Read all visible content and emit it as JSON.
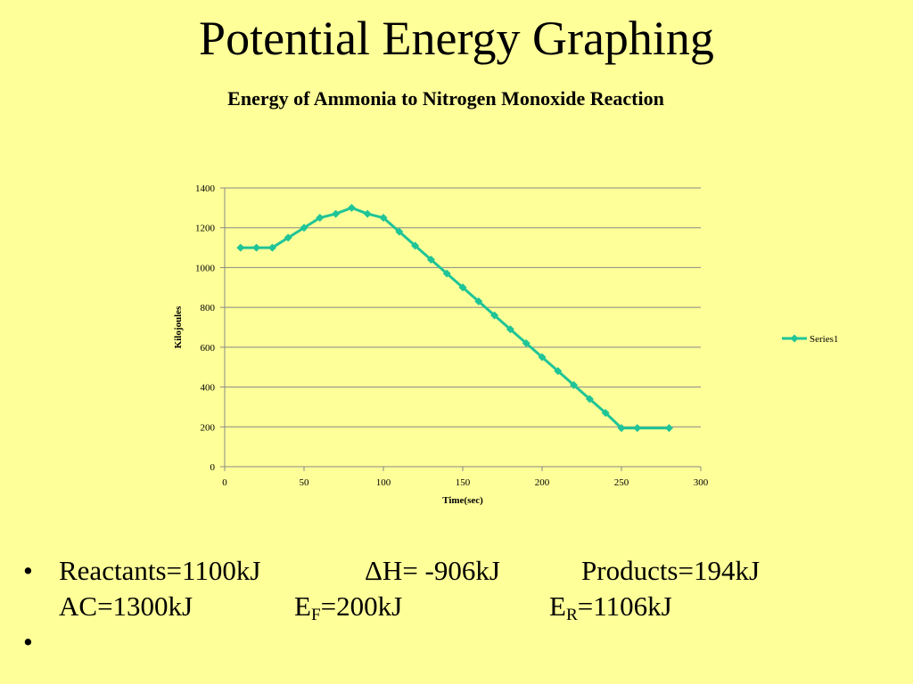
{
  "slide": {
    "title": "Potential Energy Graphing"
  },
  "chart_data": {
    "type": "line",
    "title": "Energy of Ammonia to Nitrogen Monoxide Reaction",
    "xlabel": "Time(sec)",
    "ylabel": "Kilojoules",
    "xlim": [
      0,
      300
    ],
    "ylim": [
      0,
      1400
    ],
    "xticks": [
      "0",
      "50",
      "100",
      "150",
      "200",
      "250",
      "300"
    ],
    "yticks": [
      "0",
      "200",
      "400",
      "600",
      "800",
      "1000",
      "1200",
      "1400"
    ],
    "grid": "horizontal",
    "legend": "right",
    "series": [
      {
        "name": "Series1",
        "color": "#1fc497",
        "marker": "diamond",
        "x": [
          10,
          20,
          30,
          40,
          50,
          60,
          70,
          80,
          90,
          100,
          110,
          120,
          130,
          140,
          150,
          160,
          170,
          180,
          190,
          200,
          210,
          220,
          230,
          240,
          250,
          260,
          280
        ],
        "y": [
          1100,
          1100,
          1100,
          1150,
          1200,
          1250,
          1270,
          1300,
          1270,
          1250,
          1180,
          1110,
          1040,
          970,
          900,
          830,
          760,
          690,
          620,
          550,
          480,
          410,
          340,
          270,
          194,
          194,
          194
        ]
      }
    ]
  },
  "bullets": {
    "dot": "•",
    "line1": {
      "reactants": "Reactants=1100kJ",
      "delta_h": "ΔH= -906kJ",
      "products": "Products=194kJ"
    },
    "line2": {
      "ac": "AC=1300kJ",
      "ef_main": "E",
      "ef_sub": "F",
      "ef_rest": "=200kJ",
      "er_main": "E",
      "er_sub": "R",
      "er_rest": "=1106kJ"
    }
  }
}
